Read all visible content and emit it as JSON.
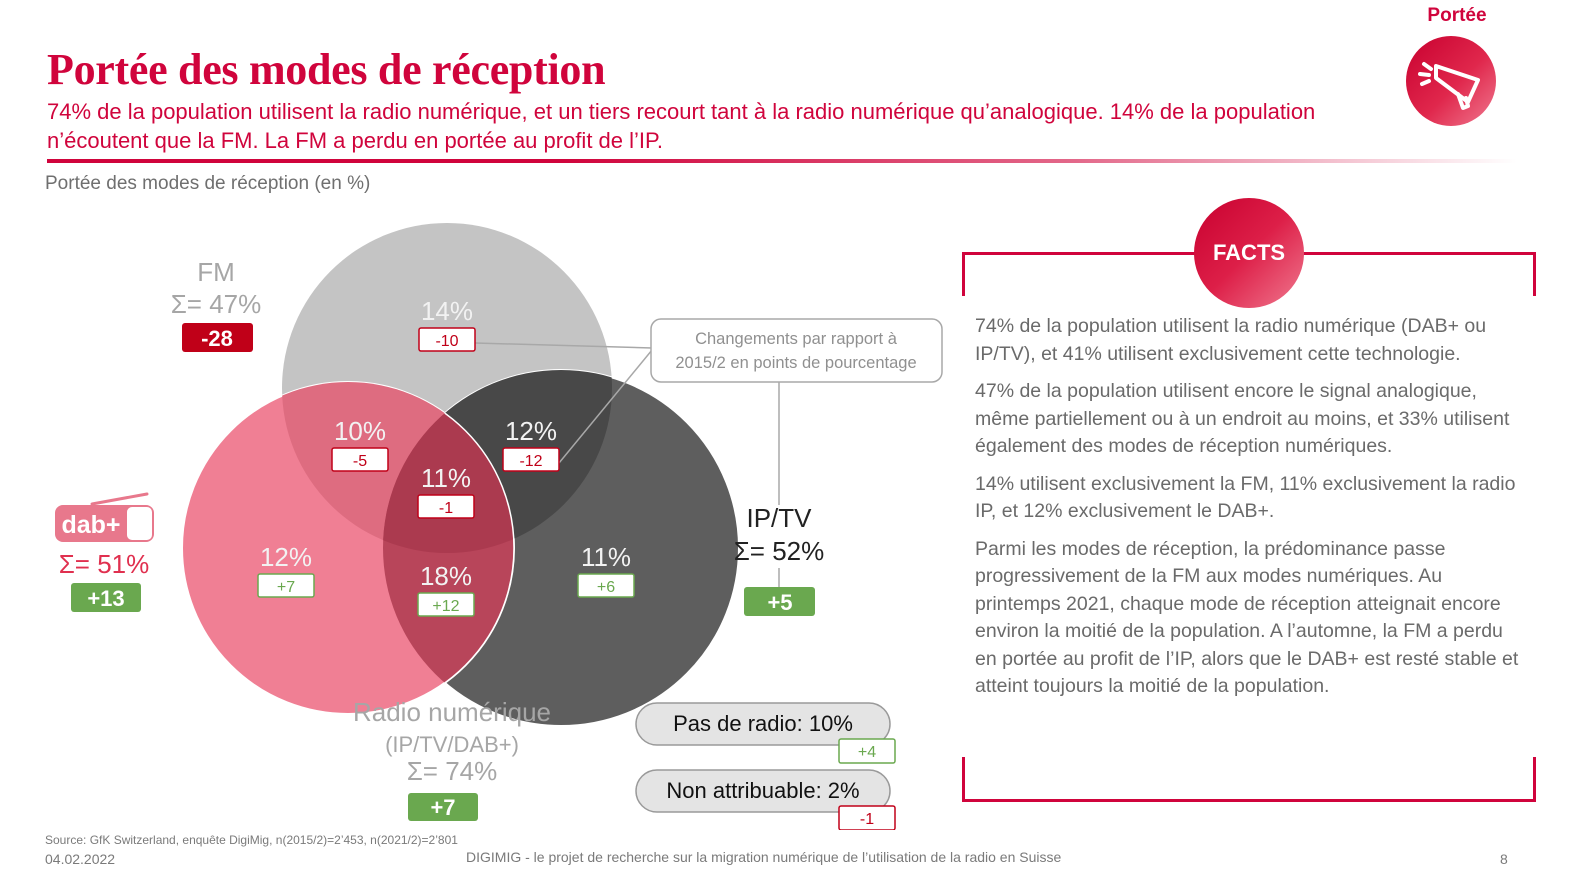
{
  "header": {
    "title": "Portée des modes de réception",
    "subtitle": "74% de la population utilisent la radio numérique, et un tiers recourt tant à la radio numérique qu’analogique. 14% de la population n’écoutent que la FM. La FM a perdu en portée au profit de l’IP.",
    "badge_label": "Portée",
    "badge_icon": "megaphone-icon"
  },
  "chart_caption": "Portée des modes de réception (en %)",
  "chart_data": {
    "type": "venn",
    "title": "Portée des modes de réception (en %)",
    "unit": "%",
    "change_reference": "Changements par  rapport à 2015/2 en points de pourcentage",
    "sets": [
      {
        "id": "fm",
        "name": "FM",
        "total_label": "Σ= 47%",
        "total": 47,
        "change": "-28",
        "color": "#c4c4c4"
      },
      {
        "id": "dab",
        "name": "dab+",
        "total_label": "Σ= 51%",
        "total": 51,
        "change": "+13",
        "color": "#f07f94"
      },
      {
        "id": "ip",
        "name": "IP/TV",
        "total_label": "Σ= 52%",
        "total": 52,
        "change": "+5",
        "color": "#5e5e5e"
      }
    ],
    "regions": [
      {
        "id": "fm_only",
        "sets": [
          "fm"
        ],
        "value": 14,
        "label": "14%",
        "change": "-10"
      },
      {
        "id": "fm_dab",
        "sets": [
          "fm",
          "dab"
        ],
        "value": 10,
        "label": "10%",
        "change": "-5"
      },
      {
        "id": "fm_ip",
        "sets": [
          "fm",
          "ip"
        ],
        "value": 12,
        "label": "12%",
        "change": "-12"
      },
      {
        "id": "all",
        "sets": [
          "fm",
          "dab",
          "ip"
        ],
        "value": 11,
        "label": "11%",
        "change": "-1"
      },
      {
        "id": "dab_only",
        "sets": [
          "dab"
        ],
        "value": 12,
        "label": "12%",
        "change": "+7"
      },
      {
        "id": "dab_ip",
        "sets": [
          "dab",
          "ip"
        ],
        "value": 18,
        "label": "18%",
        "change": "+12"
      },
      {
        "id": "ip_only",
        "sets": [
          "ip"
        ],
        "value": 11,
        "label": "11%",
        "change": "+6"
      }
    ],
    "digital": {
      "name": "Radio numérique",
      "sub": "(IP/TV/DAB+)",
      "total_label": "Σ= 74%",
      "total": 74,
      "change": "+7"
    },
    "extras": [
      {
        "label": "Pas de radio: 10%",
        "value": 10,
        "change": "+4"
      },
      {
        "label": "Non attribuable: 2%",
        "value": 2,
        "change": "-1"
      }
    ],
    "colors": {
      "positive": "#6aa84f",
      "negative": "#c00018",
      "overlap_fm_dab": "#de6c80",
      "overlap_fm_ip": "#484848",
      "overlap_dab_ip": "#b8455a",
      "overlap_all": "#ab3a4f"
    }
  },
  "facts": {
    "title": "FACTS",
    "paragraphs": [
      "74% de la population utilisent la radio numérique (DAB+ ou IP/TV), et 41% utilisent exclusivement cette technologie.",
      "47% de la population utilisent encore le signal analogique, même partiellement ou à un endroit au moins, et 33% utilisent également des modes de réception numériques.",
      "14% utilisent exclusivement la FM, 11% exclusivement la radio IP, et 12% exclusivement le DAB+.",
      "Parmi les modes de réception, la prédominance passe progressivement de la FM aux modes numériques. Au printemps 2021, chaque mode de réception atteignait encore environ la moitié de la population. A l’automne, la FM a perdu en portée au profit de l’IP, alors que le DAB+ est resté stable et atteint toujours la moitié de la population."
    ]
  },
  "footer": {
    "source": "Source: GfK Switzerland,  enquête DigiMig,  n(2015/2)=2’453, n(2021/2)=2’801",
    "date": "04.02.2022",
    "project": "DIGIMIG - le projet de recherche sur la migration numérique de l’utilisation de la radio en Suisse",
    "page": "8"
  },
  "accent_color": "#d0043c"
}
